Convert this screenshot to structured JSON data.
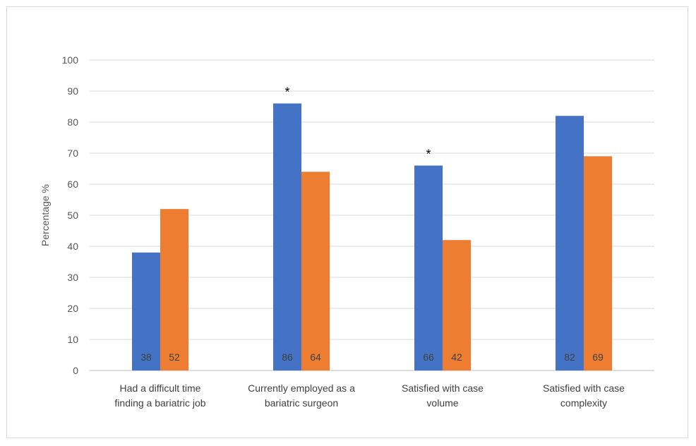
{
  "chart_data": {
    "type": "bar",
    "title": "",
    "xlabel": "",
    "ylabel": "Percentage %",
    "ylim": [
      0,
      100
    ],
    "yticks": [
      0,
      10,
      20,
      30,
      40,
      50,
      60,
      70,
      80,
      90,
      100
    ],
    "grid": true,
    "legend": "none",
    "categories": [
      [
        "Had a difficult time",
        "finding a bariatric job"
      ],
      [
        "Currently employed as a",
        "bariatric surgeon"
      ],
      [
        "Satisfied with case",
        "volume"
      ],
      [
        "Satisfied with case",
        "complexity"
      ]
    ],
    "series": [
      {
        "color": "#4472C4",
        "values": [
          38,
          86,
          66,
          82
        ],
        "labels": [
          "38",
          "86",
          "66",
          "82"
        ]
      },
      {
        "color": "#ED7D31",
        "values": [
          52,
          64,
          42,
          69
        ],
        "labels": [
          "52",
          "64",
          "42",
          "69"
        ]
      }
    ],
    "annotations": [
      "",
      "*",
      "*",
      ""
    ]
  }
}
